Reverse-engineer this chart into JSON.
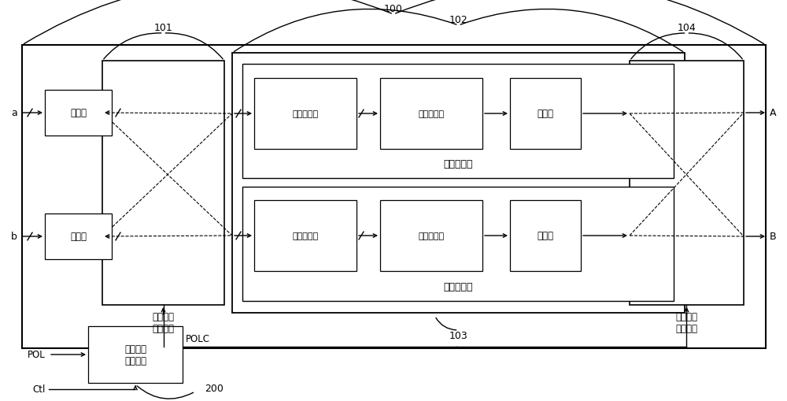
{
  "bg_color": "#ffffff",
  "fig_width": 10.0,
  "fig_height": 5.1,
  "labels": {
    "buf": "缓存器",
    "level_shifter": "电平位移器",
    "dac": "数模转换器",
    "pos_channel": "正电压通道",
    "neg_channel": "负电压通道",
    "ch1_sel": "第一通道\n选择模块",
    "ch2_sel": "第二通道\n选择模块",
    "pol_ctrl": "极性信号\n控制单元"
  }
}
